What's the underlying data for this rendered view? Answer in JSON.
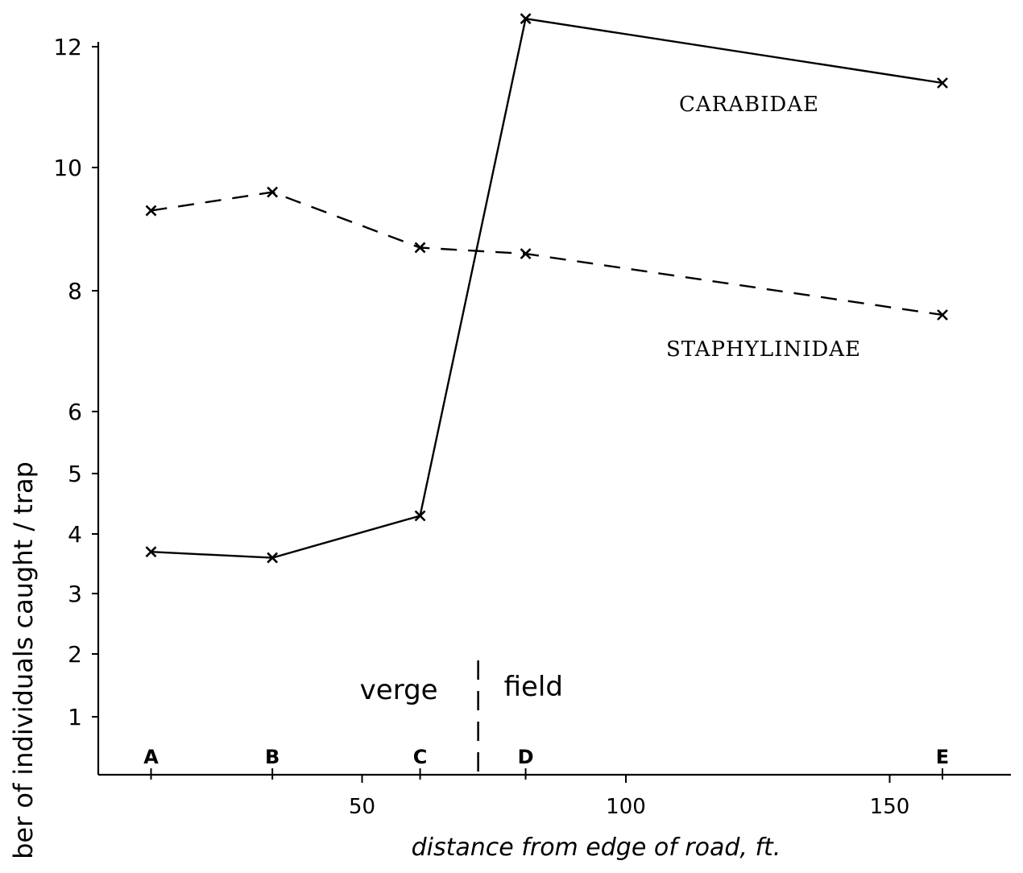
{
  "chart_data": {
    "type": "line",
    "xlabel": "distance from edge of road, ft.",
    "ylabel": "ber of individuals caught / trap",
    "x_ticks": [
      50,
      100,
      150
    ],
    "y_ticks": [
      1,
      2,
      3,
      4,
      5,
      6,
      8,
      10,
      12
    ],
    "station_labels": [
      {
        "label": "A",
        "x": 10
      },
      {
        "label": "B",
        "x": 33
      },
      {
        "label": "C",
        "x": 61
      },
      {
        "label": "D",
        "x": 81
      },
      {
        "label": "E",
        "x": 160
      }
    ],
    "zones": {
      "boundary_x": 72,
      "left_label": "verge",
      "right_label": "field"
    },
    "series": [
      {
        "name": "CARABIDAE",
        "line_style": "solid",
        "x": [
          10,
          33,
          61,
          81,
          160
        ],
        "values": [
          3.7,
          3.6,
          4.3,
          12.6,
          11.4
        ]
      },
      {
        "name": "STAPHYLINIDAE",
        "line_style": "dashed",
        "x": [
          10,
          33,
          61,
          81,
          160
        ],
        "values": [
          9.3,
          9.6,
          8.7,
          8.6,
          7.6
        ]
      }
    ],
    "grid": false,
    "colors": {
      "ink": "#000000",
      "background": "#ffffff"
    }
  }
}
